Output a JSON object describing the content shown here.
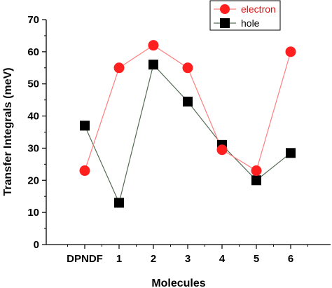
{
  "chart_data": {
    "type": "line",
    "title": "",
    "xlabel": "Molecules",
    "ylabel": "Transfer Integrals (meV)",
    "categories": [
      "DPNDF",
      "1",
      "2",
      "3",
      "4",
      "5",
      "6"
    ],
    "ylim": [
      0,
      70
    ],
    "yticks": [
      0,
      10,
      20,
      30,
      40,
      50,
      60,
      70
    ],
    "grid": false,
    "legend_position": "top-right",
    "series": [
      {
        "name": "electron",
        "color": "#ff7f7f",
        "marker_color": "#ff1f1f",
        "marker": "circle",
        "values": [
          23,
          55,
          62,
          55,
          29.5,
          23,
          60
        ]
      },
      {
        "name": "hole",
        "color": "#556b55",
        "marker_color": "#000000",
        "marker": "square",
        "values": [
          37,
          13,
          56,
          44.5,
          31,
          20,
          28.5
        ]
      }
    ]
  }
}
